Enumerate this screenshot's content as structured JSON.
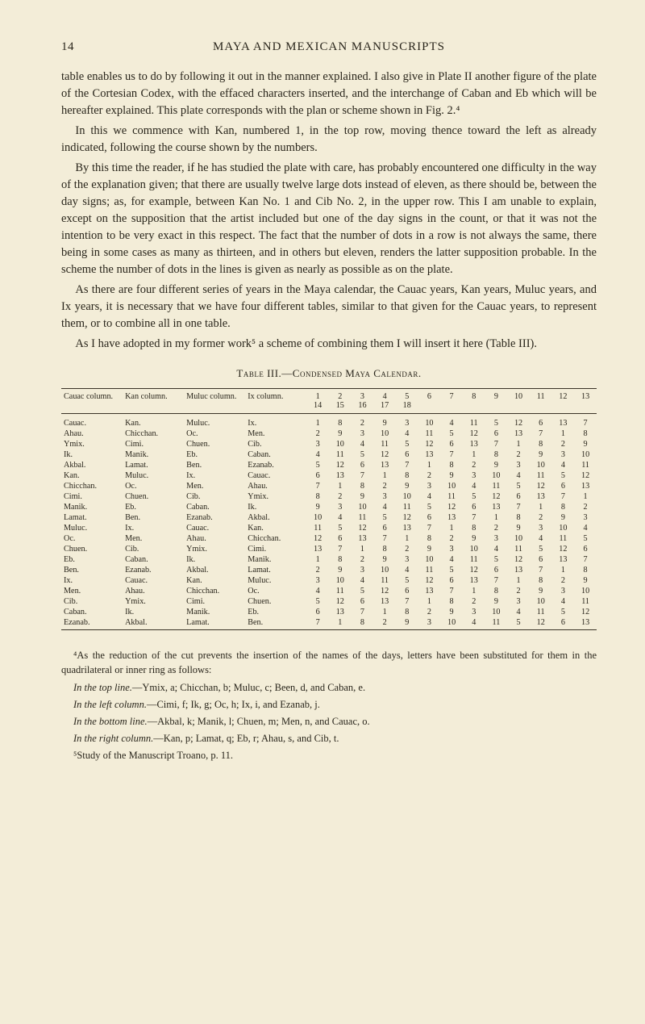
{
  "header": {
    "page_number": "14",
    "running_title": "MAYA AND MEXICAN MANUSCRIPTS"
  },
  "paragraphs": {
    "p1": "table enables us to do by following it out in the manner explained. I also give in Plate II another figure of the plate of the Cortesian Codex, with the effaced characters inserted, and the interchange of Caban and Eb which will be hereafter explained. This plate corresponds with the plan or scheme shown in Fig. 2.⁴",
    "p2": "In this we commence with Kan, numbered 1, in the top row, moving thence toward the left as already indicated, following the course shown by the numbers.",
    "p3": "By this time the reader, if he has studied the plate with care, has probably encountered one difficulty in the way of the explanation given; that there are usually twelve large dots instead of eleven, as there should be, between the day signs; as, for example, between Kan No. 1 and Cib No. 2, in the upper row. This I am unable to explain, except on the supposition that the artist included but one of the day signs in the count, or that it was not the intention to be very exact in this respect. The fact that the number of dots in a row is not always the same, there being in some cases as many as thirteen, and in others but eleven, renders the latter supposition probable. In the scheme the number of dots in the lines is given as nearly as possible as on the plate.",
    "p4": "As there are four different series of years in the Maya calendar, the Cauac years, Kan years, Muluc years, and Ix years, it is necessary that we have four different tables, similar to that given for the Cauac years, to represent them, or to combine all in one table.",
    "p5": "As I have adopted in my former work⁵ a scheme of combining them I will insert it here (Table III)."
  },
  "table": {
    "caption": "Table III.—Condensed Maya Calendar.",
    "header_row1": [
      "Cauac column.",
      "Kan column.",
      "Muluc column.",
      "Ix column.",
      "1",
      "2",
      "3",
      "4",
      "5",
      "6",
      "7",
      "8",
      "9",
      "10",
      "11",
      "12",
      "13"
    ],
    "header_row2": [
      "",
      "",
      "",
      "",
      "14",
      "15",
      "16",
      "17",
      "18",
      "",
      "",
      "",
      "",
      "",
      "",
      "",
      ""
    ],
    "rows": [
      [
        "Cauac.",
        "Kan.",
        "Muluc.",
        "Ix.",
        "1",
        "8",
        "2",
        "9",
        "3",
        "10",
        "4",
        "11",
        "5",
        "12",
        "6",
        "13",
        "7"
      ],
      [
        "Ahau.",
        "Chicchan.",
        "Oc.",
        "Men.",
        "2",
        "9",
        "3",
        "10",
        "4",
        "11",
        "5",
        "12",
        "6",
        "13",
        "7",
        "1",
        "8"
      ],
      [
        "Ymix.",
        "Cimi.",
        "Chuen.",
        "Cib.",
        "3",
        "10",
        "4",
        "11",
        "5",
        "12",
        "6",
        "13",
        "7",
        "1",
        "8",
        "2",
        "9"
      ],
      [
        "Ik.",
        "Manik.",
        "Eb.",
        "Caban.",
        "4",
        "11",
        "5",
        "12",
        "6",
        "13",
        "7",
        "1",
        "8",
        "2",
        "9",
        "3",
        "10"
      ],
      [
        "Akbal.",
        "Lamat.",
        "Ben.",
        "Ezanab.",
        "5",
        "12",
        "6",
        "13",
        "7",
        "1",
        "8",
        "2",
        "9",
        "3",
        "10",
        "4",
        "11"
      ],
      [
        "Kan.",
        "Muluc.",
        "Ix.",
        "Cauac.",
        "6",
        "13",
        "7",
        "1",
        "8",
        "2",
        "9",
        "3",
        "10",
        "4",
        "11",
        "5",
        "12"
      ],
      [
        "Chicchan.",
        "Oc.",
        "Men.",
        "Ahau.",
        "7",
        "1",
        "8",
        "2",
        "9",
        "3",
        "10",
        "4",
        "11",
        "5",
        "12",
        "6",
        "13"
      ],
      [
        "Cimi.",
        "Chuen.",
        "Cib.",
        "Ymix.",
        "8",
        "2",
        "9",
        "3",
        "10",
        "4",
        "11",
        "5",
        "12",
        "6",
        "13",
        "7",
        "1"
      ],
      [
        "Manik.",
        "Eb.",
        "Caban.",
        "Ik.",
        "9",
        "3",
        "10",
        "4",
        "11",
        "5",
        "12",
        "6",
        "13",
        "7",
        "1",
        "8",
        "2"
      ],
      [
        "Lamat.",
        "Ben.",
        "Ezanab.",
        "Akbal.",
        "10",
        "4",
        "11",
        "5",
        "12",
        "6",
        "13",
        "7",
        "1",
        "8",
        "2",
        "9",
        "3"
      ],
      [
        "Muluc.",
        "Ix.",
        "Cauac.",
        "Kan.",
        "11",
        "5",
        "12",
        "6",
        "13",
        "7",
        "1",
        "8",
        "2",
        "9",
        "3",
        "10",
        "4"
      ],
      [
        "Oc.",
        "Men.",
        "Ahau.",
        "Chicchan.",
        "12",
        "6",
        "13",
        "7",
        "1",
        "8",
        "2",
        "9",
        "3",
        "10",
        "4",
        "11",
        "5"
      ],
      [
        "Chuen.",
        "Cib.",
        "Ymix.",
        "Cimi.",
        "13",
        "7",
        "1",
        "8",
        "2",
        "9",
        "3",
        "10",
        "4",
        "11",
        "5",
        "12",
        "6"
      ],
      [
        "Eb.",
        "Caban.",
        "Ik.",
        "Manik.",
        "1",
        "8",
        "2",
        "9",
        "3",
        "10",
        "4",
        "11",
        "5",
        "12",
        "6",
        "13",
        "7"
      ],
      [
        "Ben.",
        "Ezanab.",
        "Akbal.",
        "Lamat.",
        "2",
        "9",
        "3",
        "10",
        "4",
        "11",
        "5",
        "12",
        "6",
        "13",
        "7",
        "1",
        "8"
      ],
      [
        "Ix.",
        "Cauac.",
        "Kan.",
        "Muluc.",
        "3",
        "10",
        "4",
        "11",
        "5",
        "12",
        "6",
        "13",
        "7",
        "1",
        "8",
        "2",
        "9"
      ],
      [
        "Men.",
        "Ahau.",
        "Chicchan.",
        "Oc.",
        "4",
        "11",
        "5",
        "12",
        "6",
        "13",
        "7",
        "1",
        "8",
        "2",
        "9",
        "3",
        "10"
      ],
      [
        "Cib.",
        "Ymix.",
        "Cimi.",
        "Chuen.",
        "5",
        "12",
        "6",
        "13",
        "7",
        "1",
        "8",
        "2",
        "9",
        "3",
        "10",
        "4",
        "11"
      ],
      [
        "Caban.",
        "Ik.",
        "Manik.",
        "Eb.",
        "6",
        "13",
        "7",
        "1",
        "8",
        "2",
        "9",
        "3",
        "10",
        "4",
        "11",
        "5",
        "12"
      ],
      [
        "Ezanab.",
        "Akbal.",
        "Lamat.",
        "Ben.",
        "7",
        "1",
        "8",
        "2",
        "9",
        "3",
        "10",
        "4",
        "11",
        "5",
        "12",
        "6",
        "13"
      ]
    ]
  },
  "footnotes": {
    "f4a": "⁴As the reduction of the cut prevents the insertion of the names of the days, letters have been substituted for them in the quadrilateral or inner ring as follows:",
    "f4b_label": "In the top line.",
    "f4b_text": "—Ymix, a; Chicchan, b; Muluc, c; Been, d, and Caban, e.",
    "f4c_label": "In the left column.",
    "f4c_text": "—Cimi, f; Ik, g; Oc, h; Ix, i, and Ezanab, j.",
    "f4d_label": "In the bottom line.",
    "f4d_text": "—Akbal, k; Manik, l; Chuen, m; Men, n, and Cauac, o.",
    "f4e_label": "In the right column.",
    "f4e_text": "—Kan, p; Lamat, q; Eb, r; Ahau, s, and Cib, t.",
    "f5": "⁵Study of the Manuscript Troano, p. 11."
  }
}
